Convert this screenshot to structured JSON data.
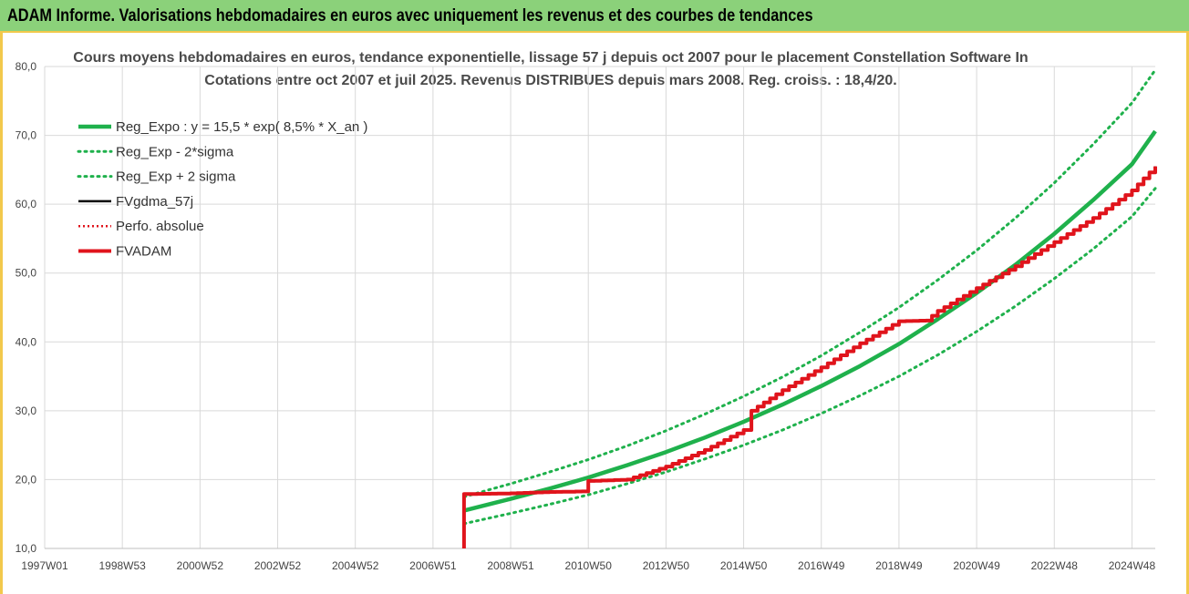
{
  "header": {
    "title": "ADAM Informe. Valorisations hebdomadaires en euros avec uniquement les revenus et des courbes de tendances"
  },
  "colors": {
    "regression": "#1fb14c",
    "sigma_band": "#1fb14c",
    "fvgdma": "#000000",
    "perfo": "#e0141c",
    "fvadam": "#e0141c",
    "header_bg": "#8bd17a",
    "frame": "#f2c94c"
  },
  "chart_data": {
    "type": "line",
    "title": "Cours moyens hebdomadaires en euros, tendance exponentielle, lissage 57 j depuis oct 2007 pour le placement Constellation Software In",
    "subtitle": "Cotations entre oct 2007 et juil 2025. Revenus DISTRIBUES depuis mars 2008. Reg. croiss. : 18,4/20.",
    "xlabel": "",
    "ylabel": "",
    "ylim": [
      10,
      80
    ],
    "yticks": [
      "10,0",
      "20,0",
      "30,0",
      "40,0",
      "50,0",
      "60,0",
      "70,0",
      "80,0"
    ],
    "xlim": [
      1997.0,
      2025.6
    ],
    "xticks": [
      {
        "label": "1997W01",
        "x": 1997.0
      },
      {
        "label": "1998W53",
        "x": 1999.0
      },
      {
        "label": "2000W52",
        "x": 2001.0
      },
      {
        "label": "2002W52",
        "x": 2003.0
      },
      {
        "label": "2004W52",
        "x": 2005.0
      },
      {
        "label": "2006W51",
        "x": 2007.0
      },
      {
        "label": "2008W51",
        "x": 2009.0
      },
      {
        "label": "2010W50",
        "x": 2011.0
      },
      {
        "label": "2012W50",
        "x": 2013.0
      },
      {
        "label": "2014W50",
        "x": 2015.0
      },
      {
        "label": "2016W49",
        "x": 2017.0
      },
      {
        "label": "2018W49",
        "x": 2019.0
      },
      {
        "label": "2020W49",
        "x": 2021.0
      },
      {
        "label": "2022W48",
        "x": 2023.0
      },
      {
        "label": "2024W48",
        "x": 2025.0
      }
    ],
    "grid": true,
    "legend_position": "top-left",
    "series": [
      {
        "name": "Reg_Expo : y = 15,5 * exp( 8,5% *  X_an )",
        "style": "solid-thick",
        "x": [
          2007.8,
          2009,
          2010,
          2011,
          2012,
          2013,
          2014,
          2015,
          2016,
          2017,
          2018,
          2019,
          2020,
          2021,
          2022,
          2023,
          2024,
          2025,
          2025.6
        ],
        "y": [
          15.5,
          17.2,
          18.7,
          20.3,
          22.1,
          24.0,
          26.1,
          28.4,
          30.9,
          33.6,
          36.5,
          39.7,
          43.3,
          47.1,
          51.2,
          55.7,
          60.6,
          65.8,
          70.6
        ]
      },
      {
        "name": "Reg_Exp - 2*sigma",
        "style": "dotted",
        "x": [
          2007.8,
          2009,
          2010,
          2011,
          2012,
          2013,
          2014,
          2015,
          2016,
          2017,
          2018,
          2019,
          2020,
          2021,
          2022,
          2023,
          2024,
          2025,
          2025.6
        ],
        "y": [
          13.6,
          15.1,
          16.4,
          17.8,
          19.4,
          21.1,
          23.0,
          25.0,
          27.2,
          29.6,
          32.2,
          35.0,
          38.1,
          41.5,
          45.2,
          49.2,
          53.5,
          58.2,
          62.3
        ]
      },
      {
        "name": "Reg_Exp + 2 sigma",
        "style": "dotted",
        "x": [
          2007.8,
          2009,
          2010,
          2011,
          2012,
          2013,
          2014,
          2015,
          2016,
          2017,
          2018,
          2019,
          2020,
          2021,
          2022,
          2023,
          2024,
          2025,
          2025.6
        ],
        "y": [
          17.5,
          19.4,
          21.1,
          22.9,
          24.9,
          27.1,
          29.5,
          32.1,
          34.9,
          38.0,
          41.4,
          45.0,
          49.0,
          53.3,
          58.0,
          63.1,
          68.7,
          74.7,
          79.5
        ]
      },
      {
        "name": "FVgdma_57j",
        "style": "solid",
        "x": [
          2007.8,
          2007.8,
          2009,
          2010,
          2011.0,
          2011.0,
          2012,
          2013,
          2014,
          2015,
          2015.2,
          2016,
          2017,
          2018,
          2019,
          2019.7,
          2020,
          2021,
          2022,
          2023,
          2024,
          2025,
          2025.6
        ],
        "y": [
          10.0,
          17.9,
          18.0,
          18.2,
          18.3,
          19.8,
          20.0,
          21.9,
          24.3,
          27.2,
          30.0,
          33.0,
          36.3,
          39.8,
          43.0,
          43.1,
          44.5,
          47.8,
          51.0,
          54.5,
          58.0,
          62.0,
          65.5
        ]
      },
      {
        "name": "Perfo. absolue",
        "style": "dotted",
        "x": [
          2007.8,
          2007.8,
          2009,
          2010,
          2011.0,
          2011.0,
          2012,
          2013,
          2014,
          2015,
          2015.2,
          2016,
          2017,
          2018,
          2019,
          2019.7,
          2020,
          2021,
          2022,
          2023,
          2024,
          2025,
          2025.6
        ],
        "y": [
          10.0,
          17.9,
          18.0,
          18.2,
          18.3,
          19.8,
          20.0,
          21.9,
          24.3,
          27.2,
          30.0,
          33.0,
          36.3,
          39.8,
          43.0,
          43.1,
          44.5,
          47.8,
          51.0,
          54.5,
          58.0,
          62.0,
          65.5
        ]
      },
      {
        "name": "FVADAM",
        "style": "solid-thick",
        "x": [
          2007.8,
          2007.8,
          2009,
          2010,
          2011.0,
          2011.0,
          2012,
          2013,
          2014,
          2015,
          2015.2,
          2016,
          2017,
          2018,
          2019,
          2019.7,
          2020,
          2021,
          2022,
          2023,
          2024,
          2025,
          2025.6
        ],
        "y": [
          10.0,
          17.9,
          18.0,
          18.2,
          18.3,
          19.8,
          20.0,
          21.9,
          24.3,
          27.2,
          30.0,
          33.0,
          36.3,
          39.8,
          43.0,
          43.1,
          44.5,
          47.8,
          51.0,
          54.5,
          58.0,
          62.0,
          65.5
        ]
      }
    ]
  }
}
